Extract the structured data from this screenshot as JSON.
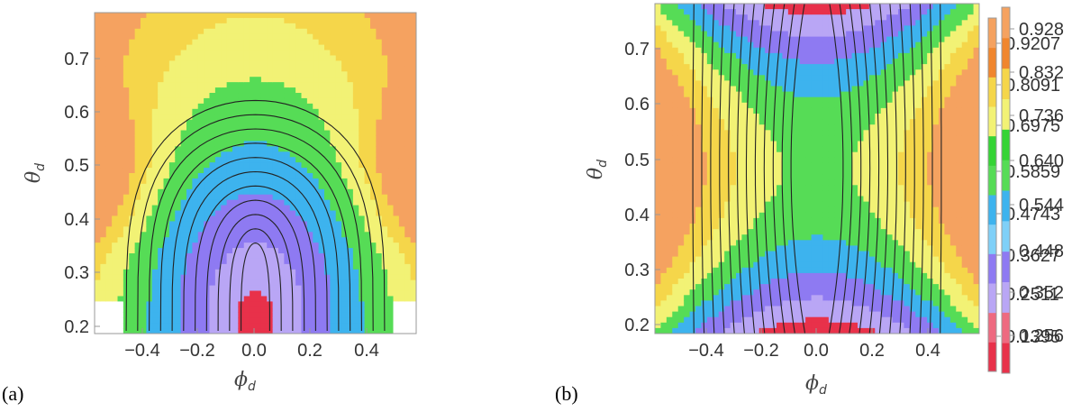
{
  "chart_data": [
    {
      "type": "heatmap",
      "panel_label": "(a)",
      "xlabel": {
        "main": "ϕ",
        "sub": "d"
      },
      "ylabel": {
        "main": "θ",
        "sub": "d"
      },
      "xlim": [
        -0.56,
        0.56
      ],
      "ylim": [
        0.195,
        0.78
      ],
      "x_ticks": [
        -0.4,
        -0.2,
        0.0,
        0.2,
        0.4
      ],
      "y_ticks": [
        0.2,
        0.3,
        0.4,
        0.5,
        0.6,
        0.7
      ],
      "colorbar": {
        "levels": [
          "0.1395",
          "0.2511",
          "0.3627",
          "0.4743",
          "0.5859",
          "0.6975",
          "0.8091",
          "0.9207"
        ],
        "colors": [
          "#e8314a",
          "#ee6a80",
          "#b9a6f5",
          "#8e7af2",
          "#7fd0f8",
          "#3db3ee",
          "#56dc56",
          "#35d435",
          "#f2f275",
          "#f5d64a",
          "#f0862e",
          "#f5a260"
        ]
      },
      "contours": "black iso-lines of a secondary quantity (elongated nested arcs)"
    },
    {
      "type": "heatmap",
      "panel_label": "(b)",
      "xlabel": {
        "main": "ϕ",
        "sub": "d"
      },
      "ylabel": {
        "main": "θ",
        "sub": "d"
      },
      "xlim": [
        -0.56,
        0.56
      ],
      "ylim": [
        0.195,
        0.78
      ],
      "x_ticks": [
        -0.4,
        -0.2,
        0.0,
        0.2,
        0.4
      ],
      "y_ticks": [
        0.2,
        0.3,
        0.4,
        0.5,
        0.6,
        0.7
      ],
      "colorbar": {
        "levels": [
          "0.256",
          "0.352",
          "0.448",
          "0.544",
          "0.640",
          "0.736",
          "0.832",
          "0.928"
        ],
        "colors": [
          "#e8314a",
          "#ee6a80",
          "#b9a6f5",
          "#8e7af2",
          "#7fd0f8",
          "#3db3ee",
          "#56dc56",
          "#35d435",
          "#f2f275",
          "#f5d64a",
          "#f0862e",
          "#f5a260"
        ]
      },
      "contours": "black iso-lines of a secondary quantity (vertical nested arcs)"
    }
  ]
}
